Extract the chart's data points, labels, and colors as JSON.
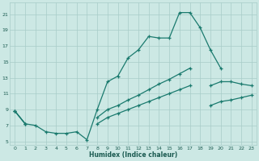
{
  "xlabel": "Humidex (Indice chaleur)",
  "background_color": "#cce8e4",
  "grid_color": "#a8ccc8",
  "line_color": "#1a7a6e",
  "xlim": [
    -0.5,
    23.5
  ],
  "ylim": [
    4.5,
    22.5
  ],
  "xticks": [
    0,
    1,
    2,
    3,
    4,
    5,
    6,
    7,
    8,
    9,
    10,
    11,
    12,
    13,
    14,
    15,
    16,
    17,
    18,
    19,
    20,
    21,
    22,
    23
  ],
  "yticks": [
    5,
    7,
    9,
    11,
    13,
    15,
    17,
    19,
    21
  ],
  "line1_x": [
    0,
    1,
    2,
    3,
    4,
    5,
    6,
    7,
    8,
    9,
    10,
    11,
    12,
    13,
    14,
    15,
    16,
    17,
    18,
    19,
    20,
    21,
    22,
    23
  ],
  "line1_y": [
    8.8,
    7.2,
    7.0,
    6.2,
    6.0,
    6.0,
    6.2,
    5.2,
    9.0,
    12.5,
    13.2,
    15.5,
    16.5,
    18.2,
    18.0,
    18.0,
    21.2,
    21.2,
    19.3,
    16.5,
    14.2,
    null,
    null,
    null
  ],
  "line2_x": [
    0,
    1,
    2,
    3,
    4,
    5,
    6,
    7,
    8,
    9,
    10,
    11,
    12,
    13,
    14,
    15,
    16,
    17,
    18,
    19,
    20,
    21,
    22,
    23
  ],
  "line2_y": [
    8.8,
    7.2,
    null,
    null,
    null,
    null,
    null,
    null,
    8.0,
    9.0,
    9.5,
    10.2,
    10.8,
    11.5,
    12.2,
    12.8,
    13.5,
    14.2,
    null,
    12.0,
    12.5,
    12.5,
    12.2,
    12.0
  ],
  "line3_x": [
    0,
    1,
    2,
    3,
    4,
    5,
    6,
    7,
    8,
    9,
    10,
    11,
    12,
    13,
    14,
    15,
    16,
    17,
    18,
    19,
    20,
    21,
    22,
    23
  ],
  "line3_y": [
    8.8,
    7.2,
    null,
    null,
    null,
    null,
    null,
    null,
    7.2,
    8.0,
    8.5,
    9.0,
    9.5,
    10.0,
    10.5,
    11.0,
    11.5,
    12.0,
    null,
    9.5,
    10.0,
    10.2,
    10.5,
    10.8
  ]
}
